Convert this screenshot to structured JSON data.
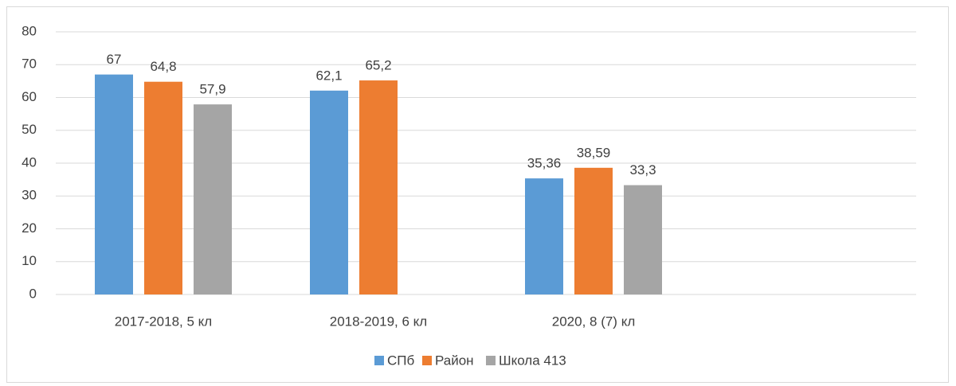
{
  "chart_data": {
    "type": "bar",
    "categories": [
      "2017-2018, 5 кл",
      "2018-2019, 6 кл",
      "2020, 8 (7) кл",
      null
    ],
    "series": [
      {
        "name": "СПб",
        "color": "#5b9bd5",
        "values": [
          67,
          62.1,
          35.36,
          null
        ],
        "value_labels": [
          "67",
          "62,1",
          "35,36",
          null
        ]
      },
      {
        "name": "Район",
        "color": "#ed7d31",
        "values": [
          64.8,
          65.2,
          38.59,
          null
        ],
        "value_labels": [
          "64,8",
          "65,2",
          "38,59",
          null
        ]
      },
      {
        "name": "Школа 413",
        "color": "#a5a5a5",
        "values": [
          57.9,
          null,
          33.3,
          null
        ],
        "value_labels": [
          "57,9",
          null,
          "33,3",
          null
        ]
      }
    ],
    "ylim": [
      0,
      80
    ],
    "yticks": [
      0,
      10,
      20,
      30,
      40,
      50,
      60,
      70,
      80
    ],
    "grid": true,
    "legend": "bottom"
  }
}
